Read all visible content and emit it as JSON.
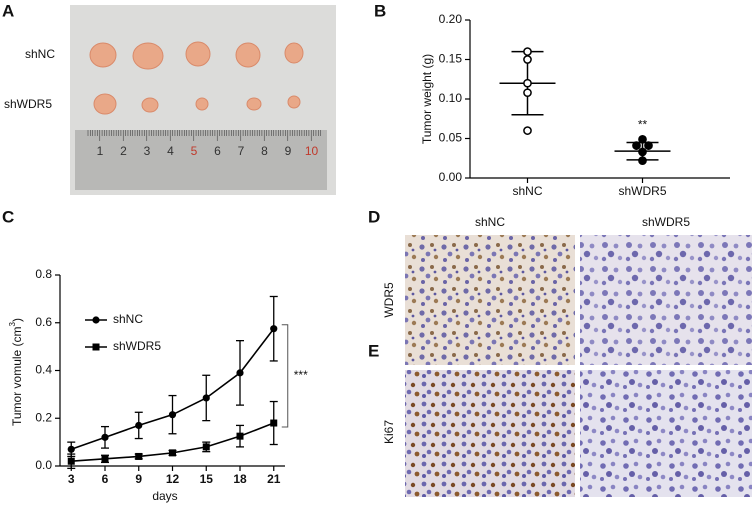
{
  "panel_labels": [
    "A",
    "B",
    "C",
    "D",
    "E"
  ],
  "photo": {
    "row_labels": [
      "shNC",
      "shWDR5"
    ],
    "ruler_labels": [
      "1",
      "2",
      "3",
      "4",
      "5",
      "6",
      "7",
      "8",
      "9",
      "10"
    ],
    "ruler_label_colors": [
      "#333",
      "#333",
      "#333",
      "#333",
      "#c0392b",
      "#333",
      "#333",
      "#333",
      "#333",
      "#c0392b"
    ]
  },
  "chart_data": [
    {
      "type": "dot",
      "ylabel": "Tumor weight (g)",
      "categories": [
        "shNC",
        "shWDR5"
      ],
      "groups": [
        {
          "values": [
            0.16,
            0.15,
            0.12,
            0.108,
            0.06
          ],
          "mean": 0.12,
          "sd": 0.04,
          "filled": false
        },
        {
          "values": [
            0.049,
            0.041,
            0.041,
            0.033,
            0.022
          ],
          "mean": 0.034,
          "sd": 0.011,
          "filled": true
        }
      ],
      "annotation": "**",
      "ylim": [
        0,
        0.2
      ],
      "yticks": [
        {
          "value": 0,
          "label": "0.00"
        },
        0.05,
        {
          "value": 0.1,
          "label": "0.10"
        },
        0.15,
        {
          "value": 0.2,
          "label": "0.20"
        }
      ],
      "color": "#000000"
    },
    {
      "type": "line",
      "xlabel": "days",
      "ylabel": [
        "Tumor vomule (cm",
        "3",
        ")"
      ],
      "x": [
        3,
        6,
        9,
        12,
        15,
        18,
        21
      ],
      "series": [
        {
          "name": "shNC",
          "marker": "circle",
          "color": "#000000",
          "values": [
            0.07,
            0.12,
            0.17,
            0.215,
            0.285,
            0.39,
            0.575
          ],
          "errors": [
            0.03,
            0.045,
            0.055,
            0.08,
            0.095,
            0.135,
            0.135
          ]
        },
        {
          "name": "shWDR5",
          "marker": "square",
          "color": "#000000",
          "values": [
            0.02,
            0.03,
            0.04,
            0.055,
            0.08,
            0.125,
            0.18
          ],
          "errors": [
            0.03,
            0.015,
            0.01,
            0.01,
            0.02,
            0.045,
            0.09
          ]
        }
      ],
      "annotation": "***",
      "xlim": [
        2,
        22
      ],
      "ylim": [
        0,
        0.8
      ],
      "xticks": [
        3,
        6,
        9,
        12,
        15,
        18,
        21
      ],
      "yticks": [
        {
          "value": 0,
          "label": "0.0"
        },
        0.2,
        0.4,
        0.6,
        0.8
      ],
      "legend": "upper-left"
    }
  ],
  "ihc": {
    "columns": [
      "shNC",
      "shWDR5"
    ],
    "rows": [
      "WDR5",
      "Ki67"
    ]
  }
}
